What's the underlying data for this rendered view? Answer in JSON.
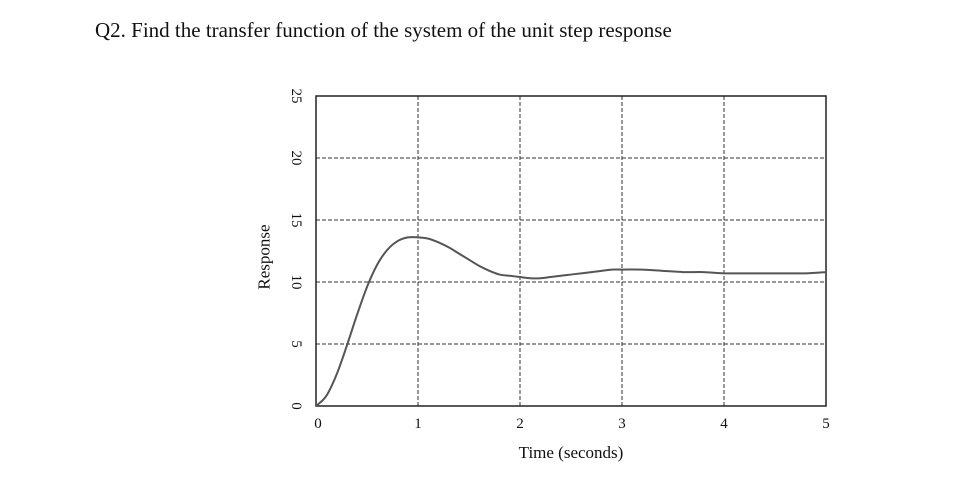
{
  "question": {
    "text": "Q2. Find the transfer function of the system of the unit step response"
  },
  "chart_data": {
    "type": "line",
    "title": "",
    "xlabel": "Time (seconds)",
    "ylabel": "Response",
    "xlim": [
      0,
      5
    ],
    "ylim": [
      0,
      25
    ],
    "x_ticks": [
      0,
      1,
      2,
      3,
      4,
      5
    ],
    "y_ticks": [
      0,
      5,
      10,
      15,
      20,
      25
    ],
    "grid": true,
    "legend": "none",
    "line_color": "#555555",
    "series": [
      {
        "x": [
          0,
          0.1,
          0.2,
          0.3,
          0.4,
          0.5,
          0.6,
          0.7,
          0.8,
          0.9,
          1.0,
          1.1,
          1.2,
          1.3,
          1.4,
          1.5,
          1.6,
          1.7,
          1.8,
          1.9,
          2.0,
          2.1,
          2.2,
          2.3,
          2.4,
          2.5,
          2.6,
          2.7,
          2.8,
          2.9,
          3.0,
          3.2,
          3.4,
          3.6,
          3.8,
          4.0,
          4.2,
          4.4,
          4.6,
          4.8,
          5.0
        ],
        "y": [
          0,
          0.8,
          2.5,
          4.8,
          7.3,
          9.6,
          11.4,
          12.6,
          13.3,
          13.6,
          13.6,
          13.5,
          13.2,
          12.8,
          12.3,
          11.8,
          11.3,
          10.9,
          10.6,
          10.5,
          10.4,
          10.3,
          10.3,
          10.4,
          10.5,
          10.6,
          10.7,
          10.8,
          10.9,
          11.0,
          11.0,
          11.0,
          10.9,
          10.8,
          10.8,
          10.7,
          10.7,
          10.7,
          10.7,
          10.7,
          10.8
        ]
      }
    ]
  }
}
